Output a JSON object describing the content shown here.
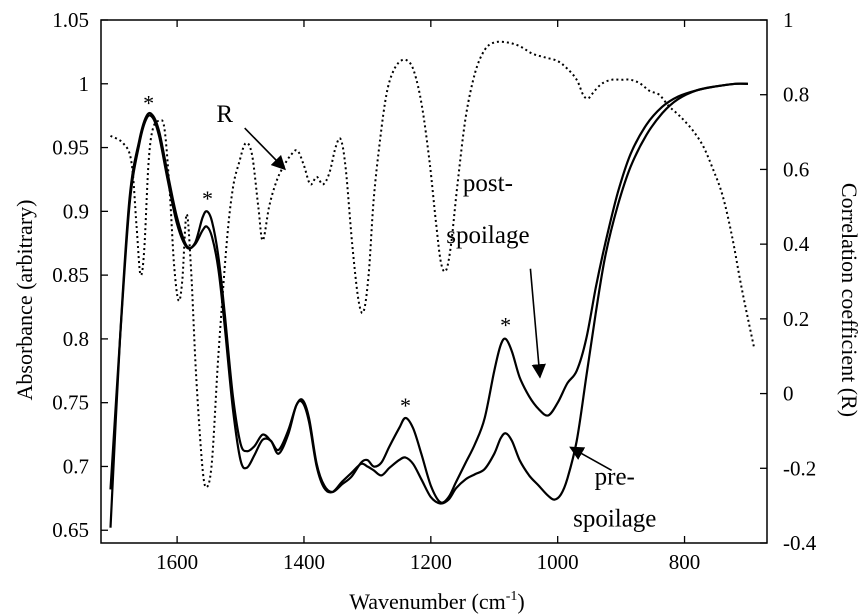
{
  "chart_data": {
    "type": "line",
    "xlabel": "Wavenumber (cm",
    "xlabel_sup": "-1",
    "xlabel_end": ")",
    "ylabel": "Absorbance (arbitrary)",
    "y2label": "Correlation coefficient (R)",
    "xlim": [
      1720,
      670
    ],
    "ylim": [
      0.64,
      1.05
    ],
    "y2lim": [
      -0.4,
      1.0
    ],
    "x_reversed": true,
    "xticks": [
      1600,
      1400,
      1200,
      1000,
      800
    ],
    "yticks": [
      "0.65",
      "0.7",
      "0.75",
      "0.8",
      "0.85",
      "0.9",
      "0.95",
      "1",
      "1.05"
    ],
    "y2ticks": [
      "-0.4",
      "-0.2",
      "0",
      "0.2",
      "0.4",
      "0.6",
      "0.8",
      "1"
    ],
    "grid": false,
    "series": [
      {
        "name": "post-spoilage",
        "axis": "left",
        "style": "solid",
        "color": "#000000",
        "points": [
          [
            1705,
            0.652
          ],
          [
            1690,
            0.8
          ],
          [
            1675,
            0.91
          ],
          [
            1660,
            0.955
          ],
          [
            1648,
            0.975
          ],
          [
            1638,
            0.975
          ],
          [
            1628,
            0.962
          ],
          [
            1615,
            0.93
          ],
          [
            1600,
            0.895
          ],
          [
            1585,
            0.873
          ],
          [
            1572,
            0.875
          ],
          [
            1560,
            0.895
          ],
          [
            1553,
            0.9
          ],
          [
            1545,
            0.892
          ],
          [
            1535,
            0.865
          ],
          [
            1525,
            0.82
          ],
          [
            1512,
            0.755
          ],
          [
            1500,
            0.718
          ],
          [
            1490,
            0.712
          ],
          [
            1478,
            0.716
          ],
          [
            1465,
            0.725
          ],
          [
            1452,
            0.72
          ],
          [
            1440,
            0.713
          ],
          [
            1425,
            0.728
          ],
          [
            1412,
            0.748
          ],
          [
            1402,
            0.752
          ],
          [
            1392,
            0.738
          ],
          [
            1380,
            0.702
          ],
          [
            1368,
            0.685
          ],
          [
            1355,
            0.68
          ],
          [
            1340,
            0.686
          ],
          [
            1325,
            0.692
          ],
          [
            1310,
            0.703
          ],
          [
            1300,
            0.705
          ],
          [
            1290,
            0.7
          ],
          [
            1278,
            0.703
          ],
          [
            1265,
            0.716
          ],
          [
            1250,
            0.73
          ],
          [
            1240,
            0.738
          ],
          [
            1228,
            0.73
          ],
          [
            1215,
            0.71
          ],
          [
            1200,
            0.685
          ],
          [
            1185,
            0.672
          ],
          [
            1172,
            0.676
          ],
          [
            1160,
            0.688
          ],
          [
            1145,
            0.703
          ],
          [
            1130,
            0.718
          ],
          [
            1115,
            0.738
          ],
          [
            1100,
            0.775
          ],
          [
            1090,
            0.795
          ],
          [
            1082,
            0.8
          ],
          [
            1072,
            0.79
          ],
          [
            1060,
            0.77
          ],
          [
            1045,
            0.755
          ],
          [
            1030,
            0.745
          ],
          [
            1015,
            0.74
          ],
          [
            1000,
            0.75
          ],
          [
            985,
            0.765
          ],
          [
            970,
            0.775
          ],
          [
            955,
            0.8
          ],
          [
            940,
            0.84
          ],
          [
            925,
            0.875
          ],
          [
            905,
            0.915
          ],
          [
            885,
            0.945
          ],
          [
            860,
            0.968
          ],
          [
            835,
            0.982
          ],
          [
            810,
            0.99
          ],
          [
            780,
            0.995
          ],
          [
            750,
            0.998
          ],
          [
            720,
            1.0
          ],
          [
            700,
            1.0
          ]
        ]
      },
      {
        "name": "pre-spoilage",
        "axis": "left",
        "style": "solid",
        "color": "#000000",
        "points": [
          [
            1705,
            0.682
          ],
          [
            1690,
            0.8
          ],
          [
            1675,
            0.905
          ],
          [
            1660,
            0.952
          ],
          [
            1648,
            0.973
          ],
          [
            1638,
            0.973
          ],
          [
            1628,
            0.958
          ],
          [
            1615,
            0.925
          ],
          [
            1600,
            0.89
          ],
          [
            1585,
            0.872
          ],
          [
            1572,
            0.874
          ],
          [
            1560,
            0.885
          ],
          [
            1553,
            0.888
          ],
          [
            1545,
            0.88
          ],
          [
            1535,
            0.855
          ],
          [
            1525,
            0.81
          ],
          [
            1512,
            0.745
          ],
          [
            1500,
            0.705
          ],
          [
            1490,
            0.699
          ],
          [
            1478,
            0.709
          ],
          [
            1465,
            0.721
          ],
          [
            1452,
            0.72
          ],
          [
            1440,
            0.71
          ],
          [
            1425,
            0.725
          ],
          [
            1412,
            0.748
          ],
          [
            1402,
            0.75
          ],
          [
            1392,
            0.735
          ],
          [
            1380,
            0.7
          ],
          [
            1368,
            0.683
          ],
          [
            1355,
            0.68
          ],
          [
            1340,
            0.688
          ],
          [
            1325,
            0.695
          ],
          [
            1310,
            0.702
          ],
          [
            1300,
            0.7
          ],
          [
            1290,
            0.697
          ],
          [
            1278,
            0.693
          ],
          [
            1265,
            0.699
          ],
          [
            1250,
            0.705
          ],
          [
            1240,
            0.707
          ],
          [
            1228,
            0.702
          ],
          [
            1215,
            0.69
          ],
          [
            1200,
            0.676
          ],
          [
            1185,
            0.671
          ],
          [
            1172,
            0.674
          ],
          [
            1160,
            0.683
          ],
          [
            1145,
            0.69
          ],
          [
            1130,
            0.694
          ],
          [
            1115,
            0.698
          ],
          [
            1100,
            0.71
          ],
          [
            1090,
            0.722
          ],
          [
            1082,
            0.726
          ],
          [
            1072,
            0.72
          ],
          [
            1060,
            0.705
          ],
          [
            1045,
            0.693
          ],
          [
            1030,
            0.685
          ],
          [
            1015,
            0.677
          ],
          [
            1005,
            0.674
          ],
          [
            995,
            0.678
          ],
          [
            985,
            0.69
          ],
          [
            970,
            0.72
          ],
          [
            955,
            0.77
          ],
          [
            940,
            0.82
          ],
          [
            925,
            0.865
          ],
          [
            905,
            0.905
          ],
          [
            885,
            0.935
          ],
          [
            860,
            0.96
          ],
          [
            835,
            0.977
          ],
          [
            810,
            0.988
          ],
          [
            780,
            0.995
          ],
          [
            750,
            0.998
          ],
          [
            720,
            1.0
          ],
          [
            700,
            1.0
          ]
        ]
      },
      {
        "name": "R",
        "axis": "right",
        "style": "dotted",
        "color": "#000000",
        "points": [
          [
            1705,
            0.69
          ],
          [
            1685,
            0.67
          ],
          [
            1672,
            0.62
          ],
          [
            1664,
            0.45
          ],
          [
            1658,
            0.32
          ],
          [
            1652,
            0.38
          ],
          [
            1645,
            0.62
          ],
          [
            1638,
            0.71
          ],
          [
            1628,
            0.73
          ],
          [
            1620,
            0.71
          ],
          [
            1612,
            0.55
          ],
          [
            1605,
            0.35
          ],
          [
            1598,
            0.25
          ],
          [
            1592,
            0.3
          ],
          [
            1585,
            0.48
          ],
          [
            1578,
            0.33
          ],
          [
            1570,
            0.05
          ],
          [
            1560,
            -0.2
          ],
          [
            1553,
            -0.25
          ],
          [
            1545,
            -0.18
          ],
          [
            1535,
            0.1
          ],
          [
            1522,
            0.4
          ],
          [
            1512,
            0.55
          ],
          [
            1502,
            0.62
          ],
          [
            1492,
            0.67
          ],
          [
            1482,
            0.64
          ],
          [
            1472,
            0.5
          ],
          [
            1465,
            0.41
          ],
          [
            1455,
            0.5
          ],
          [
            1445,
            0.56
          ],
          [
            1435,
            0.6
          ],
          [
            1420,
            0.64
          ],
          [
            1410,
            0.65
          ],
          [
            1400,
            0.61
          ],
          [
            1390,
            0.56
          ],
          [
            1380,
            0.58
          ],
          [
            1370,
            0.56
          ],
          [
            1360,
            0.59
          ],
          [
            1350,
            0.66
          ],
          [
            1342,
            0.68
          ],
          [
            1334,
            0.6
          ],
          [
            1324,
            0.4
          ],
          [
            1314,
            0.25
          ],
          [
            1306,
            0.22
          ],
          [
            1298,
            0.32
          ],
          [
            1290,
            0.52
          ],
          [
            1280,
            0.68
          ],
          [
            1270,
            0.8
          ],
          [
            1260,
            0.86
          ],
          [
            1248,
            0.89
          ],
          [
            1236,
            0.89
          ],
          [
            1226,
            0.86
          ],
          [
            1214,
            0.77
          ],
          [
            1202,
            0.62
          ],
          [
            1192,
            0.46
          ],
          [
            1184,
            0.35
          ],
          [
            1176,
            0.33
          ],
          [
            1168,
            0.4
          ],
          [
            1158,
            0.56
          ],
          [
            1145,
            0.74
          ],
          [
            1130,
            0.86
          ],
          [
            1115,
            0.92
          ],
          [
            1100,
            0.94
          ],
          [
            1080,
            0.94
          ],
          [
            1060,
            0.93
          ],
          [
            1040,
            0.91
          ],
          [
            1020,
            0.9
          ],
          [
            1000,
            0.89
          ],
          [
            985,
            0.87
          ],
          [
            970,
            0.84
          ],
          [
            960,
            0.8
          ],
          [
            952,
            0.79
          ],
          [
            942,
            0.81
          ],
          [
            930,
            0.83
          ],
          [
            915,
            0.84
          ],
          [
            900,
            0.84
          ],
          [
            885,
            0.84
          ],
          [
            870,
            0.83
          ],
          [
            855,
            0.81
          ],
          [
            840,
            0.8
          ],
          [
            825,
            0.77
          ],
          [
            812,
            0.75
          ],
          [
            800,
            0.73
          ],
          [
            785,
            0.7
          ],
          [
            770,
            0.66
          ],
          [
            755,
            0.6
          ],
          [
            740,
            0.53
          ],
          [
            725,
            0.42
          ],
          [
            712,
            0.3
          ],
          [
            700,
            0.2
          ],
          [
            690,
            0.12
          ]
        ]
      }
    ],
    "annotations": [
      {
        "text": "R",
        "x": 1525,
        "y": 0.97,
        "arrow_to": [
          1430,
          0.933
        ]
      },
      {
        "text": "post-",
        "x": 1110,
        "y": 0.916
      },
      {
        "text": "spoilage",
        "x": 1110,
        "y": 0.875,
        "arrow_from": [
          1043,
          0.855
        ],
        "arrow_to": [
          1028,
          0.77
        ]
      },
      {
        "text": "pre-",
        "x": 910,
        "y": 0.686
      },
      {
        "text": "spoilage",
        "x": 910,
        "y": 0.653,
        "arrow_from": [
          915,
          0.697
        ],
        "arrow_to": [
          980,
          0.715
        ]
      }
    ],
    "peak_markers": [
      {
        "text": "*",
        "x": 1645,
        "y": 0.979
      },
      {
        "text": "*",
        "x": 1552,
        "y": 0.904
      },
      {
        "text": "*",
        "x": 1240,
        "y": 0.742
      },
      {
        "text": "*",
        "x": 1082,
        "y": 0.805
      }
    ]
  }
}
